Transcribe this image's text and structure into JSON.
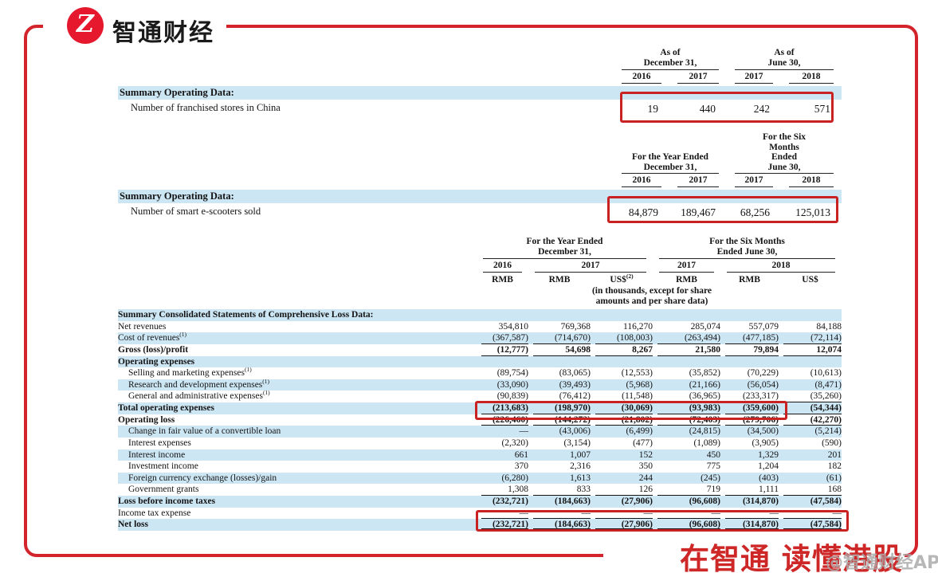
{
  "brand": {
    "logo_letter": "Z",
    "logo_text": "智通财经",
    "banner_text": "在智通 读懂港股",
    "watermark": "@智通财经APP"
  },
  "colors": {
    "frame_red": "#d3232b",
    "logo_red": "#e6182e",
    "highlight_red": "#c92222",
    "row_blue": "#cde6f4",
    "banner_red": "#ce2727"
  },
  "table1": {
    "group1_lines": [
      "As of",
      "December 31,"
    ],
    "group2_lines": [
      "As of",
      "June 30,"
    ],
    "years": [
      "2016",
      "2017",
      "2017",
      "2018"
    ],
    "section_label": "Summary Operating Data:",
    "row_label": "Number of franchised stores in China",
    "values": [
      "19",
      "440",
      "242",
      "571"
    ]
  },
  "table2": {
    "group1_lines": [
      "For the Year Ended",
      "December 31,"
    ],
    "group2_lines": [
      "For the Six",
      "Months",
      "Ended",
      "June 30,"
    ],
    "years": [
      "2016",
      "2017",
      "2017",
      "2018"
    ],
    "section_label": "Summary Operating Data:",
    "row_label": "Number of smart e-scooters sold",
    "values": [
      "84,879",
      "189,467",
      "68,256",
      "125,013"
    ]
  },
  "main_table": {
    "group1_lines": [
      "For the Year Ended",
      "December 31,"
    ],
    "group2_lines": [
      "For the Six Months",
      "Ended June 30,"
    ],
    "years": [
      "2016",
      "2017",
      "2017",
      "2018"
    ],
    "currencies": [
      "RMB",
      "RMB",
      "US$",
      "RMB",
      "RMB",
      "US$"
    ],
    "currency_sup": "(2)",
    "note_lines": [
      "(in thousands, except for share",
      "amounts and per share data)"
    ],
    "rows": [
      {
        "label": "Summary Consolidated Statements of Comprehensive Loss Data:",
        "cls": "r-blue r-bold",
        "values": [
          "",
          "",
          "",
          "",
          "",
          ""
        ]
      },
      {
        "label": "Net revenues",
        "cls": "",
        "values": [
          "354,810",
          "769,368",
          "116,270",
          "285,074",
          "557,079",
          "84,188"
        ]
      },
      {
        "label": "Cost of revenues",
        "sup": "(1)",
        "cls": "r-blue r-rule",
        "values": [
          "(367,587)",
          "(714,670)",
          "(108,003)",
          "(263,494)",
          "(477,185)",
          "(72,114)"
        ]
      },
      {
        "label": "Gross (loss)/profit",
        "cls": "r-bold r-bv r-rule",
        "values": [
          "(12,777)",
          "54,698",
          "8,267",
          "21,580",
          "79,894",
          "12,074"
        ]
      },
      {
        "label": "Operating expenses",
        "cls": "r-blue r-bold",
        "values": [
          "",
          "",
          "",
          "",
          "",
          ""
        ]
      },
      {
        "label": "Selling and marketing expenses",
        "sup": "(1)",
        "cls": "r-ind",
        "values": [
          "(89,754)",
          "(83,065)",
          "(12,553)",
          "(35,852)",
          "(70,229)",
          "(10,613)"
        ]
      },
      {
        "label": "Research and development expenses",
        "sup": "(1)",
        "cls": "r-blue r-ind",
        "values": [
          "(33,090)",
          "(39,493)",
          "(5,968)",
          "(21,166)",
          "(56,054)",
          "(8,471)"
        ]
      },
      {
        "label": "General and administrative expenses",
        "sup": "(1)",
        "cls": "r-ind r-rule",
        "values": [
          "(90,839)",
          "(76,412)",
          "(11,548)",
          "(36,965)",
          "(233,317)",
          "(35,260)"
        ]
      },
      {
        "label": "Total operating expenses",
        "cls": "r-blue r-bold r-bv r-rule",
        "values": [
          "(213,683)",
          "(198,970)",
          "(30,069)",
          "(93,983)",
          "(359,600)",
          "(54,344)"
        ]
      },
      {
        "label": "Operating loss",
        "cls": "r-bold r-bv r-rule",
        "values": [
          "(226,460)",
          "(144,272)",
          "(21,802)",
          "(72,403)",
          "(279,706)",
          "(42,270)"
        ]
      },
      {
        "label": "Change in fair value of a convertible loan",
        "cls": "r-blue r-ind",
        "values": [
          "—",
          "(43,006)",
          "(6,499)",
          "(24,815)",
          "(34,500)",
          "(5,214)"
        ]
      },
      {
        "label": "Interest expenses",
        "cls": "r-ind",
        "values": [
          "(2,320)",
          "(3,154)",
          "(477)",
          "(1,089)",
          "(3,905)",
          "(590)"
        ]
      },
      {
        "label": "Interest income",
        "cls": "r-blue r-ind",
        "values": [
          "661",
          "1,007",
          "152",
          "450",
          "1,329",
          "201"
        ]
      },
      {
        "label": "Investment income",
        "cls": "r-ind",
        "values": [
          "370",
          "2,316",
          "350",
          "775",
          "1,204",
          "182"
        ]
      },
      {
        "label": "Foreign currency exchange (losses)/gain",
        "cls": "r-blue r-ind",
        "values": [
          "(6,280)",
          "1,613",
          "244",
          "(245)",
          "(403)",
          "(61)"
        ]
      },
      {
        "label": "Government grants",
        "cls": "r-ind r-rule",
        "values": [
          "1,308",
          "833",
          "126",
          "719",
          "1,111",
          "168"
        ]
      },
      {
        "label": "Loss before income taxes",
        "cls": "r-blue r-bold r-bv",
        "values": [
          "(232,721)",
          "(184,663)",
          "(27,906)",
          "(96,608)",
          "(314,870)",
          "(47,584)"
        ]
      },
      {
        "label": "Income tax expense",
        "cls": "r-rule",
        "values": [
          "—",
          "—",
          "—",
          "—",
          "—",
          "—"
        ]
      },
      {
        "label": "Net loss",
        "cls": "r-blue r-bold r-bv r-rule2",
        "values": [
          "(232,721)",
          "(184,663)",
          "(27,906)",
          "(96,608)",
          "(314,870)",
          "(47,584)"
        ]
      }
    ]
  }
}
